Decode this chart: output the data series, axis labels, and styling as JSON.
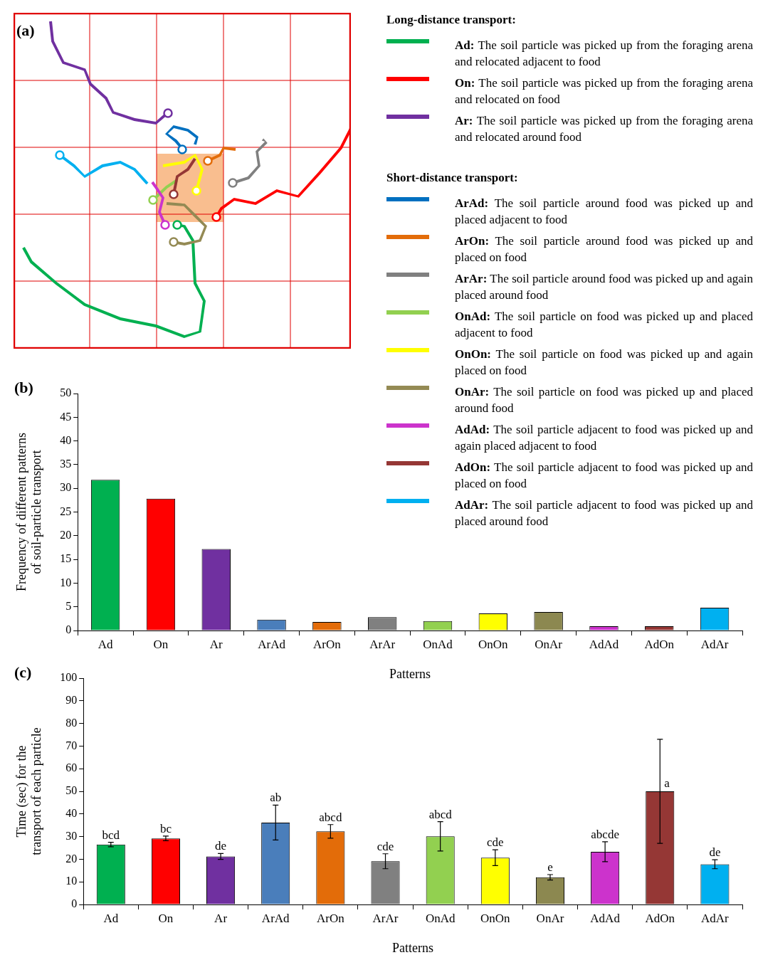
{
  "chart_data": [
    {
      "type": "other",
      "legend_title": "Long-distance transport:",
      "annotations": [
        "(a)"
      ],
      "series": [
        {
          "name": "Ad: The soil particle was picked up from the foraging arena and relocated adjacent to food",
          "color": "#00b050"
        },
        {
          "name": "On: The soil particle was picked up from the foraging arena and relocated on food",
          "color": "#ff0000"
        },
        {
          "name": "Ar: The soil particle was picked up from the foraging arena and relocated around food",
          "color": "#7030a0"
        }
      ]
    },
    {
      "type": "other",
      "legend_title": "Short-distance transport:",
      "series": [
        {
          "name": "ArAd: The soil particle around food was picked up and placed adjacent to food",
          "color": "#0070c0"
        },
        {
          "name": "ArOn: The soil particle around food was picked up and placed on food",
          "color": "#e36c09"
        },
        {
          "name": "ArAr: The soil particle around food was picked up and again placed around food",
          "color": "#808080"
        },
        {
          "name": "OnAd: The soil particle on food was picked up and placed adjacent to food",
          "color": "#92d050"
        },
        {
          "name": "OnOn: The soil particle on food was picked up and again placed on food",
          "color": "#ffff00"
        },
        {
          "name": "OnAr: The soil particle on food was picked up and placed around food",
          "color": "#948a54"
        },
        {
          "name": "AdAd: The soil particle adjacent to food was picked up and again placed adjacent to food",
          "color": "#cc33cc"
        },
        {
          "name": "AdOn: The soil particle adjacent to food was picked up and placed on food",
          "color": "#953735"
        },
        {
          "name": "AdAr: The soil particle adjacent to food was picked up and placed around food",
          "color": "#00b0f0"
        }
      ]
    },
    {
      "type": "bar",
      "annotations": [
        "(b)"
      ],
      "xlabel": "Patterns",
      "ylabel": "Frequency of different patterns of soil-particle transport",
      "grid": false,
      "categories": [
        "Ad",
        "On",
        "Ar",
        "ArAd",
        "ArOn",
        "ArAr",
        "OnAd",
        "OnOn",
        "OnAr",
        "AdAd",
        "AdOn",
        "AdAr"
      ],
      "values": [
        31.8,
        27.8,
        17.2,
        2.3,
        1.8,
        2.8,
        2.0,
        3.6,
        3.9,
        0.9,
        0.9,
        4.8
      ],
      "colors": [
        "#00b050",
        "#ff0000",
        "#7030a0",
        "#4a7ebb",
        "#e36c09",
        "#808080",
        "#92d050",
        "#ffff00",
        "#8c8850",
        "#cc33cc",
        "#953735",
        "#00b0f0"
      ],
      "ylim": [
        0,
        50
      ],
      "yticks": [
        0,
        5,
        10,
        15,
        20,
        25,
        30,
        35,
        40,
        45,
        50
      ]
    },
    {
      "type": "bar",
      "annotations": [
        "(c)"
      ],
      "xlabel": "Patterns",
      "ylabel": "Time (sec) for the transport of each particle",
      "grid": false,
      "categories": [
        "Ad",
        "On",
        "Ar",
        "ArAd",
        "ArOn",
        "ArAr",
        "OnAd",
        "OnOn",
        "OnAr",
        "AdAd",
        "AdOn",
        "AdAr"
      ],
      "values": [
        26.5,
        29.2,
        21.2,
        36.2,
        32.3,
        19.1,
        30.1,
        20.7,
        12.0,
        23.3,
        50.0,
        17.8
      ],
      "errors": [
        1.0,
        1.0,
        1.3,
        7.7,
        3.0,
        3.3,
        6.5,
        3.5,
        1.2,
        4.4,
        23.0,
        2.0
      ],
      "value_labels": [
        "bcd",
        "bc",
        "de",
        "ab",
        "abcd",
        "cde",
        "abcd",
        "cde",
        "e",
        "abcde",
        "a",
        "de"
      ],
      "colors": [
        "#00b050",
        "#ff0000",
        "#7030a0",
        "#4a7ebb",
        "#e36c09",
        "#808080",
        "#92d050",
        "#ffff00",
        "#8c8850",
        "#cc33cc",
        "#953735",
        "#00b0f0"
      ],
      "ylim": [
        0,
        100
      ],
      "yticks": [
        0,
        10,
        20,
        30,
        40,
        50,
        60,
        70,
        80,
        90,
        100
      ]
    }
  ]
}
